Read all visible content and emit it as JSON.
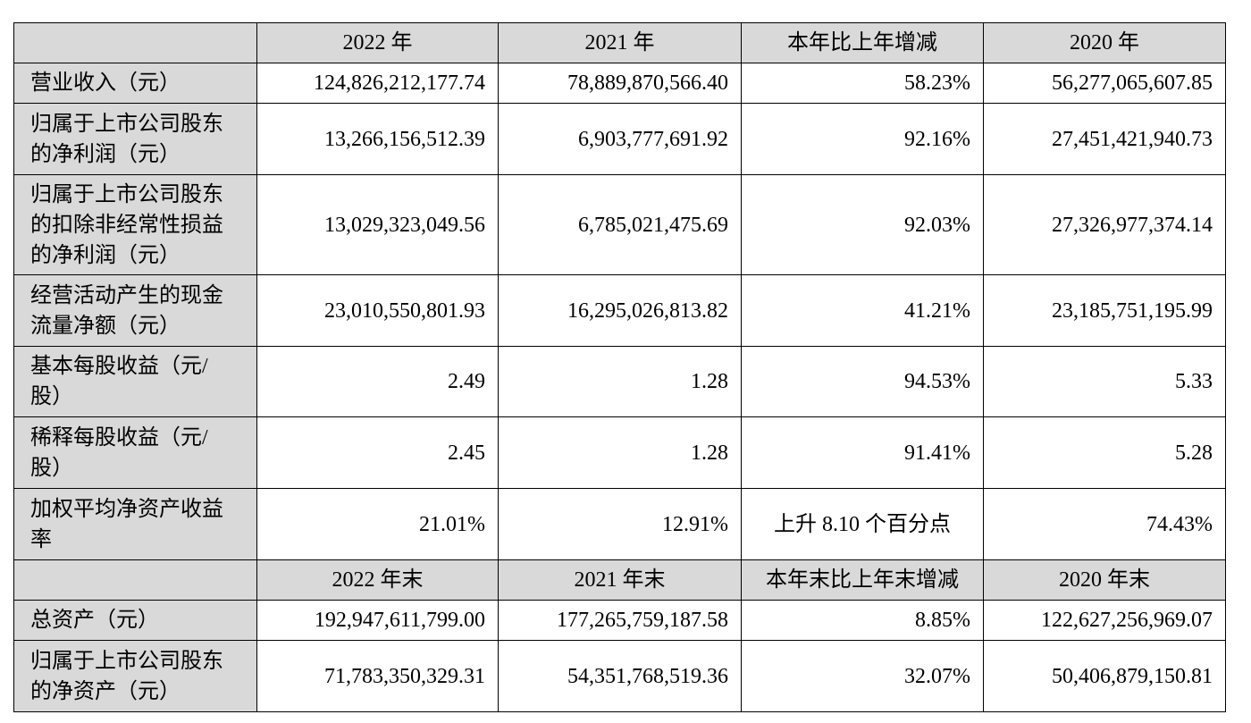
{
  "sections": [
    {
      "header": [
        "",
        "2022 年",
        "2021 年",
        "本年比上年增减",
        "2020 年"
      ],
      "rows": [
        [
          "营业收入（元）",
          "124,826,212,177.74",
          "78,889,870,566.40",
          "58.23%",
          "56,277,065,607.85"
        ],
        [
          "归属于上市公司股东的净利润（元）",
          "13,266,156,512.39",
          "6,903,777,691.92",
          "92.16%",
          "27,451,421,940.73"
        ],
        [
          "归属于上市公司股东的扣除非经常性损益的净利润（元）",
          "13,029,323,049.56",
          "6,785,021,475.69",
          "92.03%",
          "27,326,977,374.14"
        ],
        [
          "经营活动产生的现金流量净额（元）",
          "23,010,550,801.93",
          "16,295,026,813.82",
          "41.21%",
          "23,185,751,195.99"
        ],
        [
          "基本每股收益（元/股）",
          "2.49",
          "1.28",
          "94.53%",
          "5.33"
        ],
        [
          "稀释每股收益（元/股）",
          "2.45",
          "1.28",
          "91.41%",
          "5.28"
        ],
        [
          "加权平均净资产收益率",
          "21.01%",
          "12.91%",
          "上升 8.10 个百分点",
          "74.43%"
        ]
      ]
    },
    {
      "header": [
        "",
        "2022 年末",
        "2021 年末",
        "本年末比上年末增减",
        "2020 年末"
      ],
      "rows": [
        [
          "总资产（元）",
          "192,947,611,799.00",
          "177,265,759,187.58",
          "8.85%",
          "122,627,256,969.07"
        ],
        [
          "归属于上市公司股东的净资产（元）",
          "71,783,350,329.31",
          "54,351,768,519.36",
          "32.07%",
          "50,406,879,150.81"
        ]
      ]
    }
  ]
}
